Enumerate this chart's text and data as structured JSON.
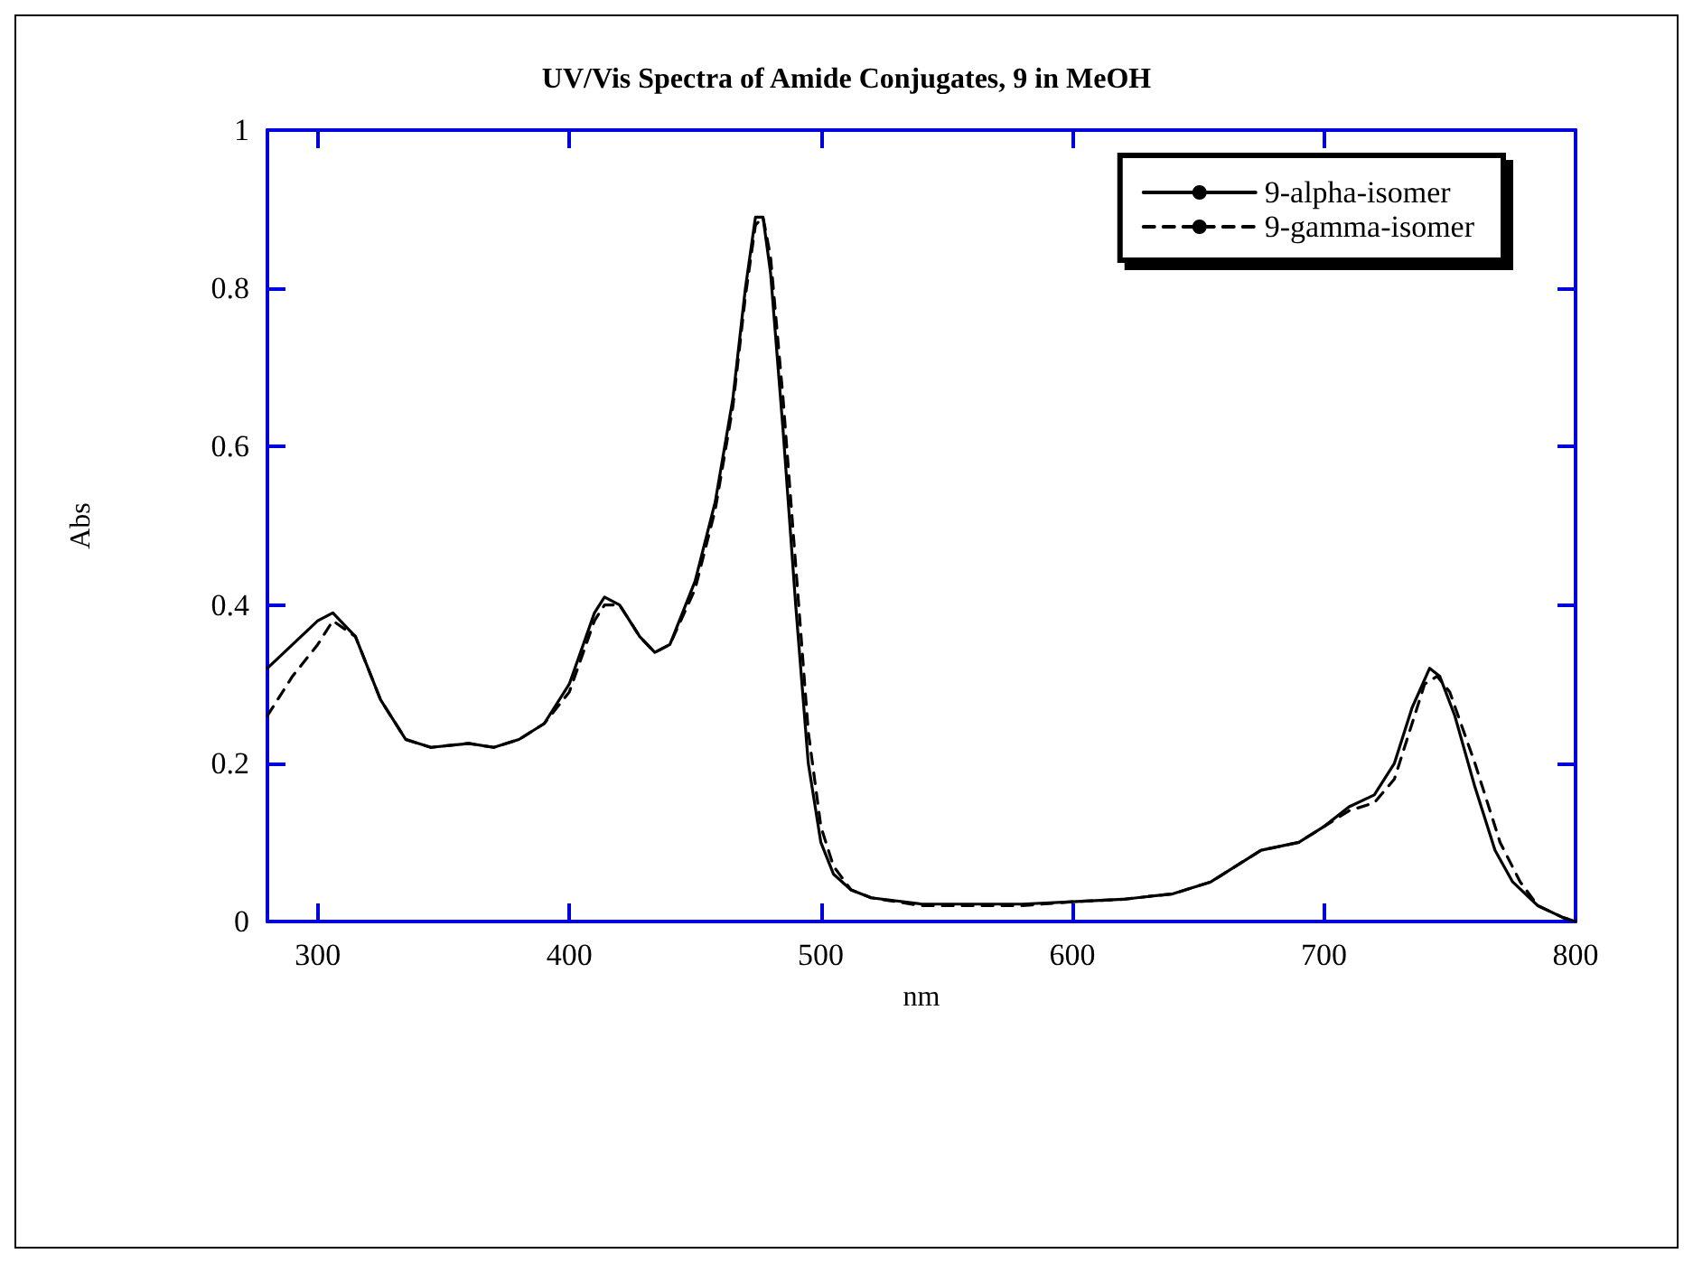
{
  "chart_data": {
    "type": "line",
    "title": "UV/Vis Spectra of Amide Conjugates, 9 in MeOH",
    "xlabel": "nm",
    "ylabel": "Abs",
    "xlim": [
      280,
      800
    ],
    "xticks": [
      300,
      400,
      500,
      600,
      700,
      800
    ],
    "ylim": [
      0,
      1
    ],
    "yticks": [
      0,
      0.2,
      0.4,
      0.6,
      0.8,
      1
    ],
    "grid": false,
    "legend": "top right",
    "marker": "none",
    "series": [
      {
        "name": "9-alpha-isomer",
        "color": "#000000",
        "line_style": "solid",
        "x": [
          280,
          290,
          300,
          306,
          315,
          325,
          335,
          345,
          360,
          370,
          380,
          390,
          400,
          410,
          414,
          420,
          428,
          434,
          440,
          450,
          458,
          465,
          470,
          474,
          477,
          480,
          485,
          490,
          495,
          500,
          505,
          512,
          520,
          540,
          580,
          600,
          620,
          640,
          655,
          665,
          675,
          690,
          700,
          710,
          720,
          728,
          735,
          742,
          746,
          752,
          760,
          768,
          775,
          785,
          795,
          800
        ],
        "values": [
          0.32,
          0.35,
          0.38,
          0.39,
          0.36,
          0.28,
          0.23,
          0.22,
          0.225,
          0.22,
          0.23,
          0.25,
          0.3,
          0.39,
          0.41,
          0.4,
          0.36,
          0.34,
          0.35,
          0.43,
          0.53,
          0.66,
          0.8,
          0.89,
          0.89,
          0.82,
          0.62,
          0.4,
          0.2,
          0.1,
          0.06,
          0.04,
          0.03,
          0.022,
          0.022,
          0.025,
          0.028,
          0.035,
          0.05,
          0.07,
          0.09,
          0.1,
          0.12,
          0.145,
          0.16,
          0.2,
          0.27,
          0.32,
          0.31,
          0.26,
          0.17,
          0.09,
          0.05,
          0.02,
          0.005,
          0
        ]
      },
      {
        "name": "9-gamma-isomer",
        "color": "#000000",
        "line_style": "dashed",
        "x": [
          280,
          290,
          300,
          306,
          315,
          325,
          335,
          345,
          360,
          370,
          380,
          390,
          400,
          410,
          414,
          420,
          428,
          434,
          440,
          450,
          458,
          465,
          470,
          474,
          477,
          480,
          485,
          490,
          495,
          500,
          505,
          512,
          520,
          540,
          580,
          600,
          620,
          640,
          655,
          665,
          675,
          690,
          700,
          710,
          720,
          728,
          735,
          740,
          745,
          750,
          760,
          770,
          778,
          785,
          795,
          800
        ],
        "values": [
          0.26,
          0.31,
          0.35,
          0.38,
          0.36,
          0.28,
          0.23,
          0.22,
          0.225,
          0.22,
          0.23,
          0.25,
          0.29,
          0.38,
          0.4,
          0.4,
          0.36,
          0.34,
          0.35,
          0.42,
          0.52,
          0.65,
          0.79,
          0.88,
          0.89,
          0.84,
          0.66,
          0.45,
          0.24,
          0.12,
          0.07,
          0.04,
          0.03,
          0.02,
          0.02,
          0.025,
          0.028,
          0.035,
          0.05,
          0.07,
          0.09,
          0.1,
          0.12,
          0.14,
          0.15,
          0.18,
          0.25,
          0.3,
          0.31,
          0.29,
          0.2,
          0.1,
          0.05,
          0.02,
          0.005,
          0
        ]
      }
    ]
  }
}
